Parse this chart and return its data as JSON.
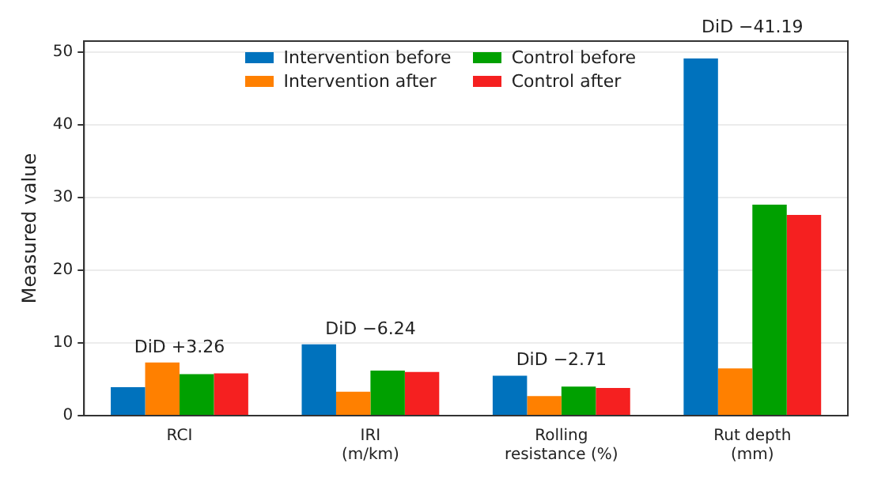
{
  "chart_data": {
    "type": "bar",
    "ylabel": "Measured value",
    "categories": [
      "RCI",
      "IRI\n(m/km)",
      "Rolling\nresistance (%)",
      "Rut depth\n(mm)"
    ],
    "series": [
      {
        "name": "Intervention before",
        "color": "#0072bd",
        "values": [
          3.9,
          9.8,
          5.5,
          49.1
        ]
      },
      {
        "name": "Intervention after",
        "color": "#ff8000",
        "values": [
          7.3,
          3.3,
          2.7,
          6.5
        ]
      },
      {
        "name": "Control before",
        "color": "#00a000",
        "values": [
          5.7,
          6.2,
          4.0,
          29.0
        ]
      },
      {
        "name": "Control after",
        "color": "#f52020",
        "values": [
          5.8,
          6.0,
          3.8,
          27.6
        ]
      }
    ],
    "ylim": [
      0,
      51.5
    ],
    "yticks": [
      0,
      10,
      20,
      30,
      40,
      50
    ],
    "grid": "y",
    "legend": "top right",
    "annotations": [
      "DiD +3.26",
      "DiD −6.24",
      "DiD −2.71",
      "DiD −41.19"
    ]
  }
}
